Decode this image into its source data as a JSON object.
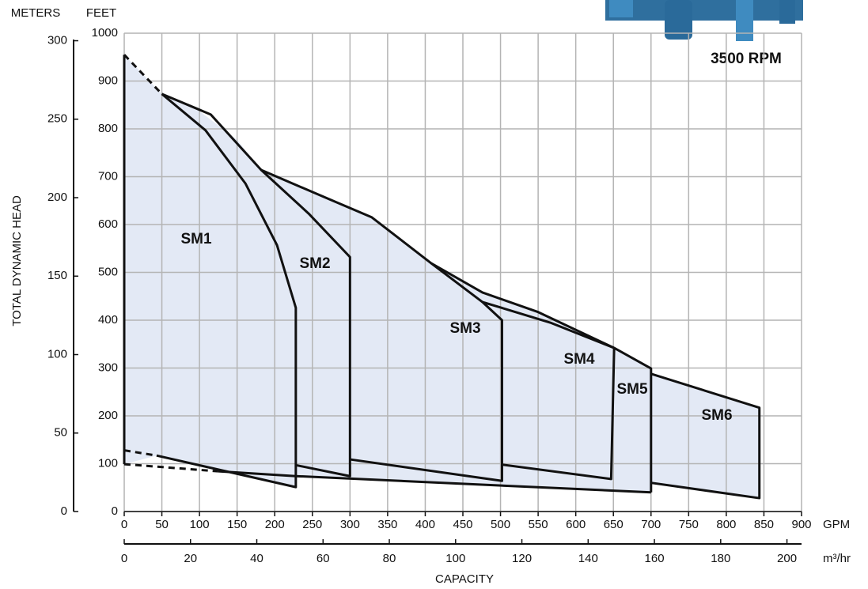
{
  "chart_data": {
    "type": "area",
    "title": "3500 RPM",
    "x_label": "CAPACITY",
    "x_unit": "GPM",
    "x2_unit": "m³/hr",
    "y_label": "TOTAL DYNAMIC HEAD",
    "y_unit": "FEET",
    "y2_unit": "METERS",
    "xlim": [
      0,
      900
    ],
    "xticks": [
      0,
      50,
      100,
      150,
      200,
      250,
      300,
      350,
      400,
      450,
      500,
      550,
      600,
      650,
      700,
      750,
      800,
      850,
      900
    ],
    "x2lim": [
      0,
      204.4
    ],
    "x2ticks": [
      0,
      20,
      40,
      60,
      80,
      100,
      120,
      140,
      160,
      180,
      200
    ],
    "ylim": [
      0,
      1000
    ],
    "yticks": [
      0,
      100,
      200,
      300,
      400,
      500,
      600,
      700,
      800,
      900,
      1000
    ],
    "y2lim": [
      0,
      304.8
    ],
    "y2ticks": [
      0,
      50,
      100,
      150,
      200,
      250,
      300
    ],
    "grid": true,
    "fill_color": "#e3e9f5",
    "line_color": "#111111",
    "envelope": {
      "x": [
        0,
        50,
        100,
        150,
        182,
        256,
        329,
        408,
        476,
        550,
        651,
        700,
        700,
        844,
        844,
        700,
        700,
        228,
        228,
        43,
        0
      ],
      "y": [
        955,
        873,
        837,
        777,
        714,
        664,
        615,
        519,
        458,
        417,
        342,
        299,
        288,
        217,
        28,
        60,
        40,
        74,
        51,
        117,
        99
      ]
    },
    "series": [
      {
        "name": "SM1",
        "x": [
          50,
          108,
          161,
          203,
          228,
          228,
          43
        ],
        "y": [
          873,
          797,
          686,
          557,
          426,
          51,
          117
        ]
      },
      {
        "name": "SM2",
        "x": [
          50,
          115,
          182,
          245,
          300,
          300,
          228
        ],
        "y": [
          873,
          830,
          714,
          623,
          532,
          74,
          97
        ]
      },
      {
        "name": "SM3",
        "x": [
          182,
          256,
          329,
          408,
          476,
          502,
          502,
          300
        ],
        "y": [
          714,
          664,
          615,
          519,
          438,
          400,
          64,
          109
        ]
      },
      {
        "name": "SM4",
        "x": [
          476,
          566,
          651,
          647,
          502
        ],
        "y": [
          438,
          395,
          342,
          68,
          98
        ]
      },
      {
        "name": "SM5",
        "x": [
          651,
          700,
          700
        ],
        "y": [
          342,
          299,
          40
        ]
      },
      {
        "name": "SM6",
        "x": [
          700,
          844,
          844,
          700
        ],
        "y": [
          288,
          217,
          28,
          60
        ]
      }
    ],
    "lines": [
      {
        "x": [
          0,
          0
        ],
        "y": [
          99,
          955
        ]
      },
      {
        "x": [
          408,
          476,
          550,
          651
        ],
        "y": [
          519,
          458,
          417,
          342
        ]
      },
      {
        "x": [
          125,
          228,
          700
        ],
        "y": [
          84,
          74,
          40
        ]
      }
    ],
    "dashed": [
      {
        "x": [
          0,
          50
        ],
        "y": [
          955,
          873
        ]
      },
      {
        "x": [
          0,
          43
        ],
        "y": [
          128,
          117
        ]
      },
      {
        "x": [
          0,
          125
        ],
        "y": [
          99,
          84
        ]
      }
    ]
  }
}
